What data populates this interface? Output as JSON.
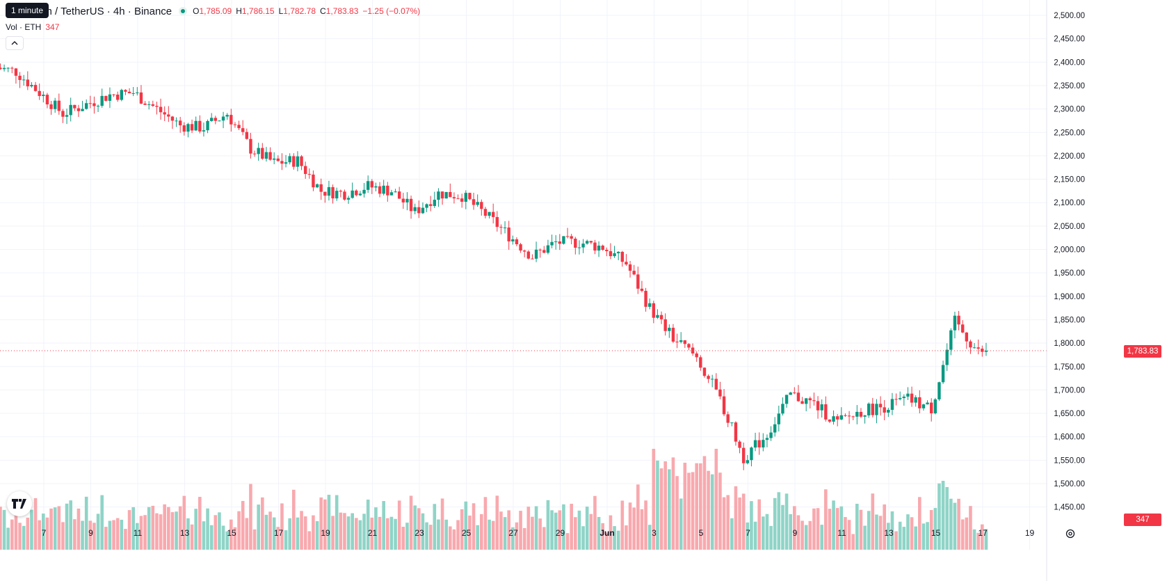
{
  "tooltip": "1 minute",
  "legend": {
    "symbol_title": "um / TetherUS · 4h · Binance",
    "open_key": "O",
    "open": "1,785.09",
    "high_key": "H",
    "high": "1,786.15",
    "low_key": "L",
    "low": "1,782.78",
    "close_key": "C",
    "close": "1,783.83",
    "change": "−1.25 (−0.07%)"
  },
  "volume_legend": {
    "label": "Vol · ETH",
    "value": "347"
  },
  "colors": {
    "up": "#089981",
    "down": "#f23645",
    "up_volume": "#8fd4c7",
    "down_volume": "#f8a9ae",
    "grid": "#f0f3fa"
  },
  "price_axis_labels": [
    "2,500.00",
    "2,450.00",
    "2,400.00",
    "2,350.00",
    "2,300.00",
    "2,250.00",
    "2,200.00",
    "2,150.00",
    "2,100.00",
    "2,050.00",
    "2,000.00",
    "1,950.00",
    "1,900.00",
    "1,850.00",
    "1,800.00",
    "1,750.00",
    "1,700.00",
    "1,650.00",
    "1,600.00",
    "1,550.00",
    "1,500.00",
    "1,450.00"
  ],
  "time_axis_labels": [
    "7",
    "9",
    "11",
    "13",
    "15",
    "17",
    "19",
    "21",
    "23",
    "25",
    "27",
    "29",
    "Jun",
    "3",
    "5",
    "7",
    "9",
    "11",
    "13",
    "15",
    "17",
    "19"
  ],
  "current_price_tag": "1,783.83",
  "current_volume_tag": "347",
  "icons": {
    "logo": "tradingview-logo-icon",
    "collapse": "chevron-up-icon",
    "settings": "gear-icon"
  },
  "chart_data": {
    "type": "candlestick",
    "timeframe": "4h",
    "y_range": [
      1420,
      2520
    ],
    "y_ticks": [
      2500,
      2450,
      2400,
      2350,
      2300,
      2250,
      2200,
      2150,
      2100,
      2050,
      2000,
      1950,
      1900,
      1850,
      1800,
      1750,
      1700,
      1650,
      1600,
      1550,
      1500,
      1450
    ],
    "current_price": 1783.83,
    "days": [
      "May 6",
      "May 7",
      "May 8",
      "May 9",
      "May 10",
      "May 11",
      "May 12",
      "May 13",
      "May 14",
      "May 15",
      "May 16",
      "May 17",
      "May 18",
      "May 19",
      "May 20",
      "May 21",
      "May 22",
      "May 23",
      "May 24",
      "May 25",
      "May 26",
      "May 27",
      "May 28",
      "May 29",
      "May 30",
      "May 31",
      "Jun 1",
      "Jun 2",
      "Jun 3",
      "Jun 4",
      "Jun 5",
      "Jun 6",
      "Jun 7",
      "Jun 8",
      "Jun 9",
      "Jun 10",
      "Jun 11",
      "Jun 12",
      "Jun 13",
      "Jun 14",
      "Jun 15",
      "Jun 16",
      "Jun 17"
    ],
    "day_closes": [
      2380,
      2335,
      2290,
      2310,
      2330,
      2335,
      2300,
      2265,
      2260,
      2290,
      2215,
      2185,
      2190,
      2125,
      2120,
      2135,
      2125,
      2080,
      2120,
      2115,
      2075,
      2030,
      1985,
      2015,
      2015,
      2005,
      1970,
      1875,
      1810,
      1770,
      1680,
      1555,
      1605,
      1690,
      1670,
      1630,
      1655,
      1665,
      1680,
      1660,
      1845,
      1780,
      1783.83
    ],
    "volume_max": 1700
  }
}
